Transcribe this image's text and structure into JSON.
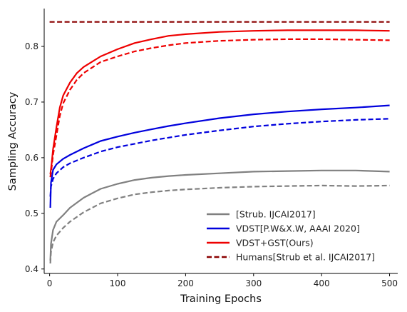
{
  "chart_data": {
    "type": "line",
    "xlabel": "Training Epochs",
    "ylabel": "Sampling Accuracy",
    "xlim": [
      -8,
      512
    ],
    "ylim": [
      0.392,
      0.868
    ],
    "xticks": [
      0,
      100,
      200,
      300,
      400,
      500
    ],
    "yticks": [
      0.4,
      0.5,
      0.6,
      0.7,
      0.8
    ],
    "grid": false,
    "legend_position": "lower-right",
    "series": [
      {
        "name": "[Strub. IJCAI2017]",
        "color": "#808080",
        "style": "solid",
        "x": [
          1,
          2,
          5,
          10,
          20,
          30,
          50,
          75,
          100,
          125,
          150,
          175,
          200,
          250,
          300,
          350,
          400,
          450,
          500
        ],
        "values": [
          0.415,
          0.445,
          0.47,
          0.485,
          0.497,
          0.51,
          0.528,
          0.544,
          0.553,
          0.56,
          0.564,
          0.567,
          0.569,
          0.572,
          0.575,
          0.576,
          0.577,
          0.577,
          0.575
        ]
      },
      {
        "name": "",
        "color": "#808080",
        "style": "dashed",
        "x": [
          1,
          2,
          5,
          10,
          20,
          30,
          50,
          75,
          100,
          125,
          150,
          175,
          200,
          250,
          300,
          350,
          400,
          450,
          500
        ],
        "values": [
          0.41,
          0.43,
          0.448,
          0.46,
          0.474,
          0.485,
          0.502,
          0.518,
          0.527,
          0.534,
          0.538,
          0.541,
          0.543,
          0.546,
          0.548,
          0.549,
          0.55,
          0.549,
          0.55
        ]
      },
      {
        "name": "VDST[P.W&X.W, AAAI 2020]",
        "color": "#0000dd",
        "style": "solid",
        "x": [
          1,
          2,
          5,
          10,
          20,
          30,
          50,
          75,
          100,
          125,
          150,
          175,
          200,
          250,
          300,
          350,
          400,
          450,
          500
        ],
        "values": [
          0.51,
          0.555,
          0.578,
          0.588,
          0.598,
          0.605,
          0.617,
          0.63,
          0.638,
          0.645,
          0.651,
          0.657,
          0.662,
          0.671,
          0.678,
          0.683,
          0.687,
          0.69,
          0.694
        ]
      },
      {
        "name": "",
        "color": "#0000dd",
        "style": "dashed",
        "x": [
          1,
          2,
          5,
          10,
          20,
          30,
          50,
          75,
          100,
          125,
          150,
          175,
          200,
          250,
          300,
          350,
          400,
          450,
          500
        ],
        "values": [
          0.53,
          0.548,
          0.562,
          0.572,
          0.583,
          0.59,
          0.6,
          0.611,
          0.619,
          0.625,
          0.631,
          0.636,
          0.641,
          0.649,
          0.656,
          0.661,
          0.665,
          0.668,
          0.67
        ]
      },
      {
        "name": "VDST+GST(Ours)",
        "color": "#ee0000",
        "style": "solid",
        "x": [
          1,
          3,
          5,
          10,
          15,
          20,
          30,
          40,
          50,
          75,
          100,
          125,
          150,
          175,
          200,
          250,
          300,
          350,
          400,
          450,
          500
        ],
        "values": [
          0.57,
          0.59,
          0.615,
          0.655,
          0.69,
          0.712,
          0.735,
          0.752,
          0.763,
          0.782,
          0.795,
          0.806,
          0.813,
          0.819,
          0.822,
          0.826,
          0.828,
          0.829,
          0.829,
          0.829,
          0.828
        ]
      },
      {
        "name": "",
        "color": "#ee0000",
        "style": "dashed",
        "x": [
          1,
          3,
          5,
          10,
          15,
          20,
          30,
          40,
          50,
          75,
          100,
          125,
          150,
          175,
          200,
          250,
          300,
          350,
          400,
          450,
          500
        ],
        "values": [
          0.565,
          0.583,
          0.605,
          0.64,
          0.675,
          0.698,
          0.722,
          0.74,
          0.752,
          0.772,
          0.782,
          0.791,
          0.797,
          0.802,
          0.806,
          0.81,
          0.812,
          0.813,
          0.813,
          0.812,
          0.811
        ]
      },
      {
        "name": "Humans[Strub et al. IJCAI2017]",
        "color": "#8b0000",
        "style": "dashed",
        "x": [
          0,
          500
        ],
        "values": [
          0.844,
          0.844
        ]
      }
    ]
  }
}
